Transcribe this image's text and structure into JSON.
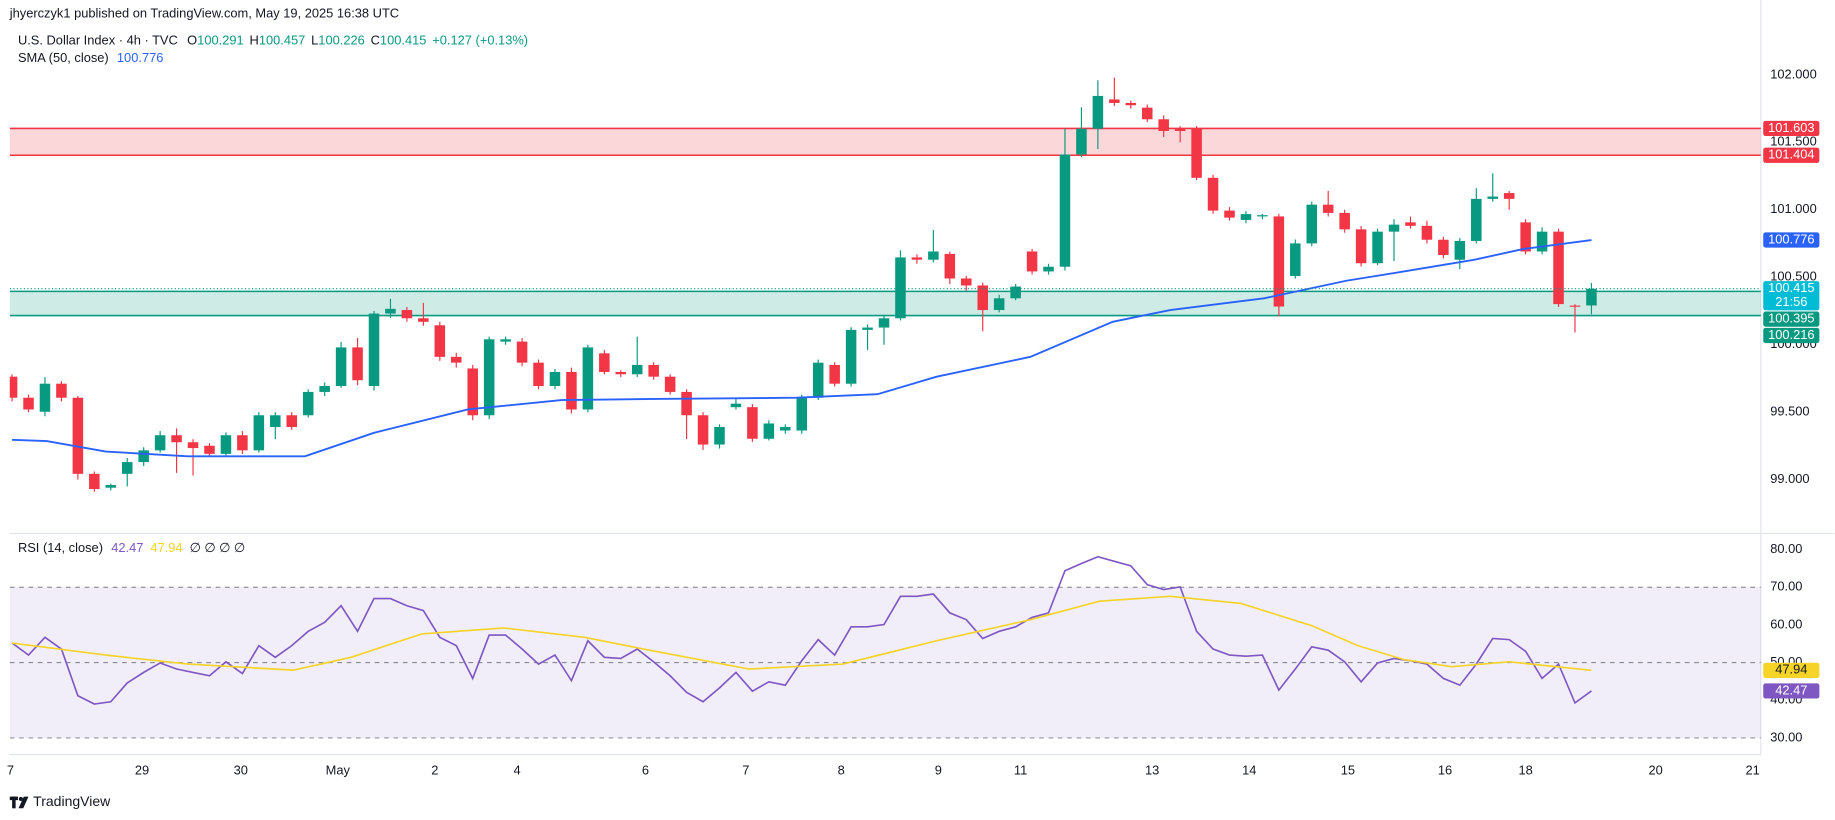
{
  "published": "jhyerczyk1 published on TradingView.com, May 19, 2025 16:38 UTC",
  "brand": "TradingView",
  "chart_data": [
    {
      "type": "candlestick",
      "title": "U.S. Dollar Index · 4h · TVC",
      "ohlc_keys": [
        "O",
        "H",
        "L",
        "C"
      ],
      "change": "+0.127 (+0.13%)",
      "up_color": "#089981",
      "down_color": "#f23645",
      "candles": [
        [
          99.763,
          99.78,
          99.58,
          99.607
        ],
        [
          99.607,
          99.63,
          99.5,
          99.52
        ],
        [
          99.503,
          99.76,
          99.47,
          99.711
        ],
        [
          99.711,
          99.73,
          99.58,
          99.607
        ],
        [
          99.607,
          99.62,
          99.0,
          99.043
        ],
        [
          99.043,
          99.06,
          98.91,
          98.93
        ],
        [
          98.94,
          98.97,
          98.92,
          98.96
        ],
        [
          99.043,
          99.16,
          98.95,
          99.13
        ],
        [
          99.13,
          99.24,
          99.1,
          99.217
        ],
        [
          99.217,
          99.36,
          99.2,
          99.329
        ],
        [
          99.329,
          99.38,
          99.05,
          99.277
        ],
        [
          99.277,
          99.3,
          99.03,
          99.234
        ],
        [
          99.251,
          99.27,
          99.17,
          99.191
        ],
        [
          99.191,
          99.35,
          99.17,
          99.329
        ],
        [
          99.329,
          99.36,
          99.19,
          99.217
        ],
        [
          99.217,
          99.5,
          99.2,
          99.477
        ],
        [
          99.39,
          99.5,
          99.3,
          99.477
        ],
        [
          99.477,
          99.5,
          99.37,
          99.39
        ],
        [
          99.477,
          99.67,
          99.46,
          99.65
        ],
        [
          99.65,
          99.72,
          99.62,
          99.694
        ],
        [
          99.694,
          100.02,
          99.68,
          99.98
        ],
        [
          99.98,
          100.05,
          99.7,
          99.737
        ],
        [
          99.694,
          100.25,
          99.66,
          100.231
        ],
        [
          100.231,
          100.34,
          100.2,
          100.266
        ],
        [
          100.257,
          100.28,
          100.17,
          100.196
        ],
        [
          100.196,
          100.31,
          100.14,
          100.17
        ],
        [
          100.144,
          100.17,
          99.88,
          99.91
        ],
        [
          99.91,
          99.94,
          99.83,
          99.867
        ],
        [
          99.824,
          99.85,
          99.44,
          99.477
        ],
        [
          99.477,
          100.06,
          99.45,
          100.04
        ],
        [
          100.023,
          100.06,
          100.0,
          100.04
        ],
        [
          100.023,
          100.05,
          99.84,
          99.867
        ],
        [
          99.867,
          99.89,
          99.67,
          99.694
        ],
        [
          99.694,
          99.82,
          99.67,
          99.798
        ],
        [
          99.798,
          99.83,
          99.49,
          99.52
        ],
        [
          99.52,
          100.0,
          99.5,
          99.98
        ],
        [
          99.936,
          99.96,
          99.78,
          99.798
        ],
        [
          99.798,
          99.81,
          99.76,
          99.781
        ],
        [
          99.781,
          100.06,
          99.76,
          99.85
        ],
        [
          99.85,
          99.87,
          99.74,
          99.763
        ],
        [
          99.763,
          99.78,
          99.63,
          99.65
        ],
        [
          99.65,
          99.67,
          99.3,
          99.477
        ],
        [
          99.477,
          99.5,
          99.22,
          99.26
        ],
        [
          99.26,
          99.41,
          99.23,
          99.39
        ],
        [
          99.537,
          99.6,
          99.52,
          99.563
        ],
        [
          99.537,
          99.56,
          99.28,
          99.303
        ],
        [
          99.303,
          99.44,
          99.29,
          99.416
        ],
        [
          99.364,
          99.41,
          99.34,
          99.39
        ],
        [
          99.364,
          99.63,
          99.34,
          99.607
        ],
        [
          99.607,
          99.89,
          99.59,
          99.867
        ],
        [
          99.85,
          99.87,
          99.69,
          99.711
        ],
        [
          99.711,
          100.13,
          99.69,
          100.11
        ],
        [
          100.11,
          100.15,
          99.96,
          100.127
        ],
        [
          100.127,
          100.22,
          100.0,
          100.196
        ],
        [
          100.196,
          100.7,
          100.18,
          100.647
        ],
        [
          100.647,
          100.67,
          100.6,
          100.63
        ],
        [
          100.63,
          100.85,
          100.61,
          100.691
        ],
        [
          100.673,
          100.69,
          100.45,
          100.491
        ],
        [
          100.491,
          100.51,
          100.4,
          100.439
        ],
        [
          100.439,
          100.46,
          100.1,
          100.257
        ],
        [
          100.257,
          100.37,
          100.24,
          100.344
        ],
        [
          100.344,
          100.45,
          100.33,
          100.431
        ],
        [
          100.691,
          100.71,
          100.52,
          100.543
        ],
        [
          100.543,
          100.6,
          100.52,
          100.578
        ],
        [
          100.578,
          101.6,
          100.55,
          101.41
        ],
        [
          101.41,
          101.76,
          101.39,
          101.601
        ],
        [
          101.601,
          101.96,
          101.45,
          101.844
        ],
        [
          101.818,
          101.98,
          101.77,
          101.792
        ],
        [
          101.792,
          101.81,
          101.75,
          101.775
        ],
        [
          101.757,
          101.78,
          101.65,
          101.671
        ],
        [
          101.671,
          101.7,
          101.54,
          101.584
        ],
        [
          101.601,
          101.62,
          101.5,
          101.584
        ],
        [
          101.601,
          101.62,
          101.22,
          101.237
        ],
        [
          101.237,
          101.26,
          100.97,
          100.994
        ],
        [
          100.994,
          101.02,
          100.92,
          100.942
        ],
        [
          100.925,
          100.99,
          100.9,
          100.968
        ],
        [
          100.951,
          100.97,
          100.93,
          100.96
        ],
        [
          100.951,
          100.97,
          100.21,
          100.283
        ],
        [
          100.509,
          100.78,
          100.49,
          100.751
        ],
        [
          100.751,
          101.06,
          100.73,
          101.038
        ],
        [
          101.038,
          101.14,
          100.95,
          100.977
        ],
        [
          100.977,
          101.0,
          100.83,
          100.855
        ],
        [
          100.855,
          100.88,
          100.58,
          100.604
        ],
        [
          100.604,
          100.86,
          100.59,
          100.838
        ],
        [
          100.838,
          100.93,
          100.62,
          100.89
        ],
        [
          100.907,
          100.95,
          100.86,
          100.881
        ],
        [
          100.881,
          100.92,
          100.75,
          100.778
        ],
        [
          100.778,
          100.8,
          100.64,
          100.665
        ],
        [
          100.63,
          100.79,
          100.56,
          100.769
        ],
        [
          100.769,
          101.16,
          100.75,
          101.081
        ],
        [
          101.081,
          101.27,
          101.06,
          101.098
        ],
        [
          101.124,
          101.14,
          101.0,
          101.081
        ],
        [
          100.907,
          100.93,
          100.67,
          100.691
        ],
        [
          100.691,
          100.87,
          100.67,
          100.838
        ],
        [
          100.838,
          100.86,
          100.28,
          100.301
        ],
        [
          100.29,
          100.3,
          100.09,
          100.283
        ],
        [
          100.291,
          100.457,
          100.226,
          100.415
        ]
      ],
      "countdown": "21:56",
      "last_color": "#00bcd4",
      "xlim": [
        -0.14,
        106.3
      ],
      "xticks": [
        {
          "value": -0.1,
          "label": "7"
        },
        {
          "value": 7.9,
          "label": "29"
        },
        {
          "value": 13.9,
          "label": "30"
        },
        {
          "value": 19.8,
          "label": "May"
        },
        {
          "value": 25.7,
          "label": "2"
        },
        {
          "value": 30.7,
          "label": "4"
        },
        {
          "value": 38.5,
          "label": "6"
        },
        {
          "value": 44.6,
          "label": "7"
        },
        {
          "value": 50.4,
          "label": "8"
        },
        {
          "value": 56.3,
          "label": "9"
        },
        {
          "value": 61.3,
          "label": "11"
        },
        {
          "value": 69.3,
          "label": "13"
        },
        {
          "value": 75.2,
          "label": "14"
        },
        {
          "value": 81.2,
          "label": "15"
        },
        {
          "value": 87.1,
          "label": "16"
        },
        {
          "value": 92.0,
          "label": "18"
        },
        {
          "value": 99.9,
          "label": "20"
        },
        {
          "value": 105.8,
          "label": "21"
        }
      ],
      "ylim": [
        98.61,
        102.555
      ],
      "yticks": [
        {
          "value": 99,
          "label": "99.000"
        },
        {
          "value": 99.5,
          "label": "99.500"
        },
        {
          "value": 100,
          "label": "100.000"
        },
        {
          "value": 100.5,
          "label": "100.500"
        },
        {
          "value": 101,
          "label": "101.000"
        },
        {
          "value": 101.5,
          "label": "101.500"
        },
        {
          "value": 102,
          "label": "102.000"
        }
      ],
      "grid": false,
      "sma": {
        "name": "SMA (50, close)",
        "color": "#2962ff",
        "x": [
          0,
          2.1,
          5.7,
          10.7,
          17.8,
          22.0,
          27.7,
          33.4,
          39.1,
          47.7,
          52.6,
          56.2,
          61.9,
          66.9,
          70.4,
          76.1,
          81.1,
          84.6,
          88.9,
          91.8,
          96.0
        ],
        "values": [
          99.295,
          99.286,
          99.208,
          99.173,
          99.173,
          99.347,
          99.52,
          99.59,
          99.598,
          99.607,
          99.633,
          99.763,
          99.91,
          100.17,
          100.257,
          100.344,
          100.474,
          100.543,
          100.63,
          100.708,
          100.776
        ]
      },
      "zones": [
        {
          "top": 101.603,
          "bottom": 101.404,
          "color": "#f23645"
        },
        {
          "top": 100.395,
          "bottom": 100.216,
          "color": "#089981"
        }
      ]
    },
    {
      "type": "line",
      "title": "RSI (14, close)",
      "placeholders": "∅ ∅ ∅ ∅",
      "xlim": [
        -0.14,
        106.3
      ],
      "ylim": [
        25.6,
        84.3
      ],
      "yticks": [
        {
          "value": 30,
          "label": "30.00"
        },
        {
          "value": 40,
          "label": "40.00"
        },
        {
          "value": 50,
          "label": "50.00"
        },
        {
          "value": 60,
          "label": "60.00"
        },
        {
          "value": 70,
          "label": "70.00"
        },
        {
          "value": 80,
          "label": "80.00"
        }
      ],
      "levels": [
        70,
        50,
        30
      ],
      "band_color": "#7e57c2",
      "series": [
        {
          "color": "#7e57c2",
          "values": [
            55.2,
            52.0,
            56.7,
            53.6,
            41.2,
            39.0,
            39.6,
            44.6,
            47.4,
            49.9,
            48.3,
            47.4,
            46.5,
            50.2,
            47.1,
            54.5,
            51.4,
            54.5,
            58.3,
            60.7,
            65.1,
            58.3,
            67.0,
            67.0,
            65.1,
            63.8,
            56.7,
            54.5,
            45.8,
            57.3,
            57.3,
            53.6,
            49.6,
            52.0,
            45.2,
            55.8,
            51.4,
            51.1,
            53.6,
            50.2,
            46.5,
            42.1,
            39.6,
            43.3,
            47.4,
            42.4,
            44.9,
            44.0,
            50.5,
            56.1,
            52.0,
            59.5,
            59.5,
            60.1,
            67.6,
            67.6,
            68.2,
            63.2,
            61.4,
            56.4,
            58.3,
            59.5,
            62.0,
            63.2,
            74.4,
            76.3,
            78.1,
            76.9,
            75.7,
            70.7,
            69.4,
            70.1,
            58.3,
            53.6,
            52.0,
            51.7,
            52.0,
            42.7,
            48.3,
            54.2,
            53.3,
            50.2,
            44.9,
            49.9,
            51.1,
            50.5,
            49.6,
            45.8,
            44.0,
            49.6,
            56.4,
            56.1,
            53.0,
            45.8,
            49.6,
            39.3,
            42.47
          ]
        },
        {
          "color": "#f5d327",
          "text_color": "#131722",
          "x": [
            0,
            5.7,
            10.7,
            17.1,
            20.6,
            24.9,
            29.9,
            34.8,
            39.1,
            44.8,
            50.5,
            56.2,
            61.9,
            66.1,
            70.4,
            74.7,
            79.0,
            81.8,
            84.6,
            87.5,
            91.0,
            96.0
          ],
          "values": [
            55.2,
            52.0,
            49.6,
            48.0,
            51.4,
            57.6,
            59.2,
            56.7,
            53.0,
            48.3,
            49.6,
            55.8,
            61.4,
            66.3,
            67.6,
            65.7,
            59.8,
            54.5,
            50.8,
            48.9,
            50.2,
            47.94
          ]
        }
      ]
    }
  ]
}
